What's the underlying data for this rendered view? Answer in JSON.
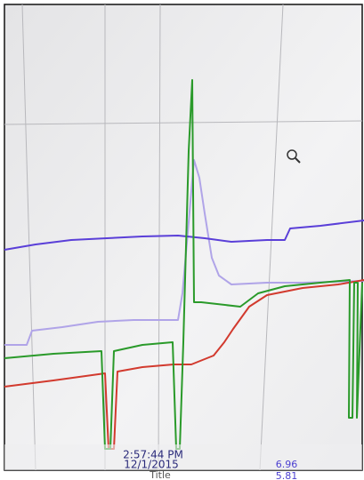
{
  "cursor": {
    "time": "2:57:44 PM",
    "date": "12/1/2015"
  },
  "legend": {
    "title": "Title",
    "values": [
      "6.96",
      "5.81"
    ]
  }
}
